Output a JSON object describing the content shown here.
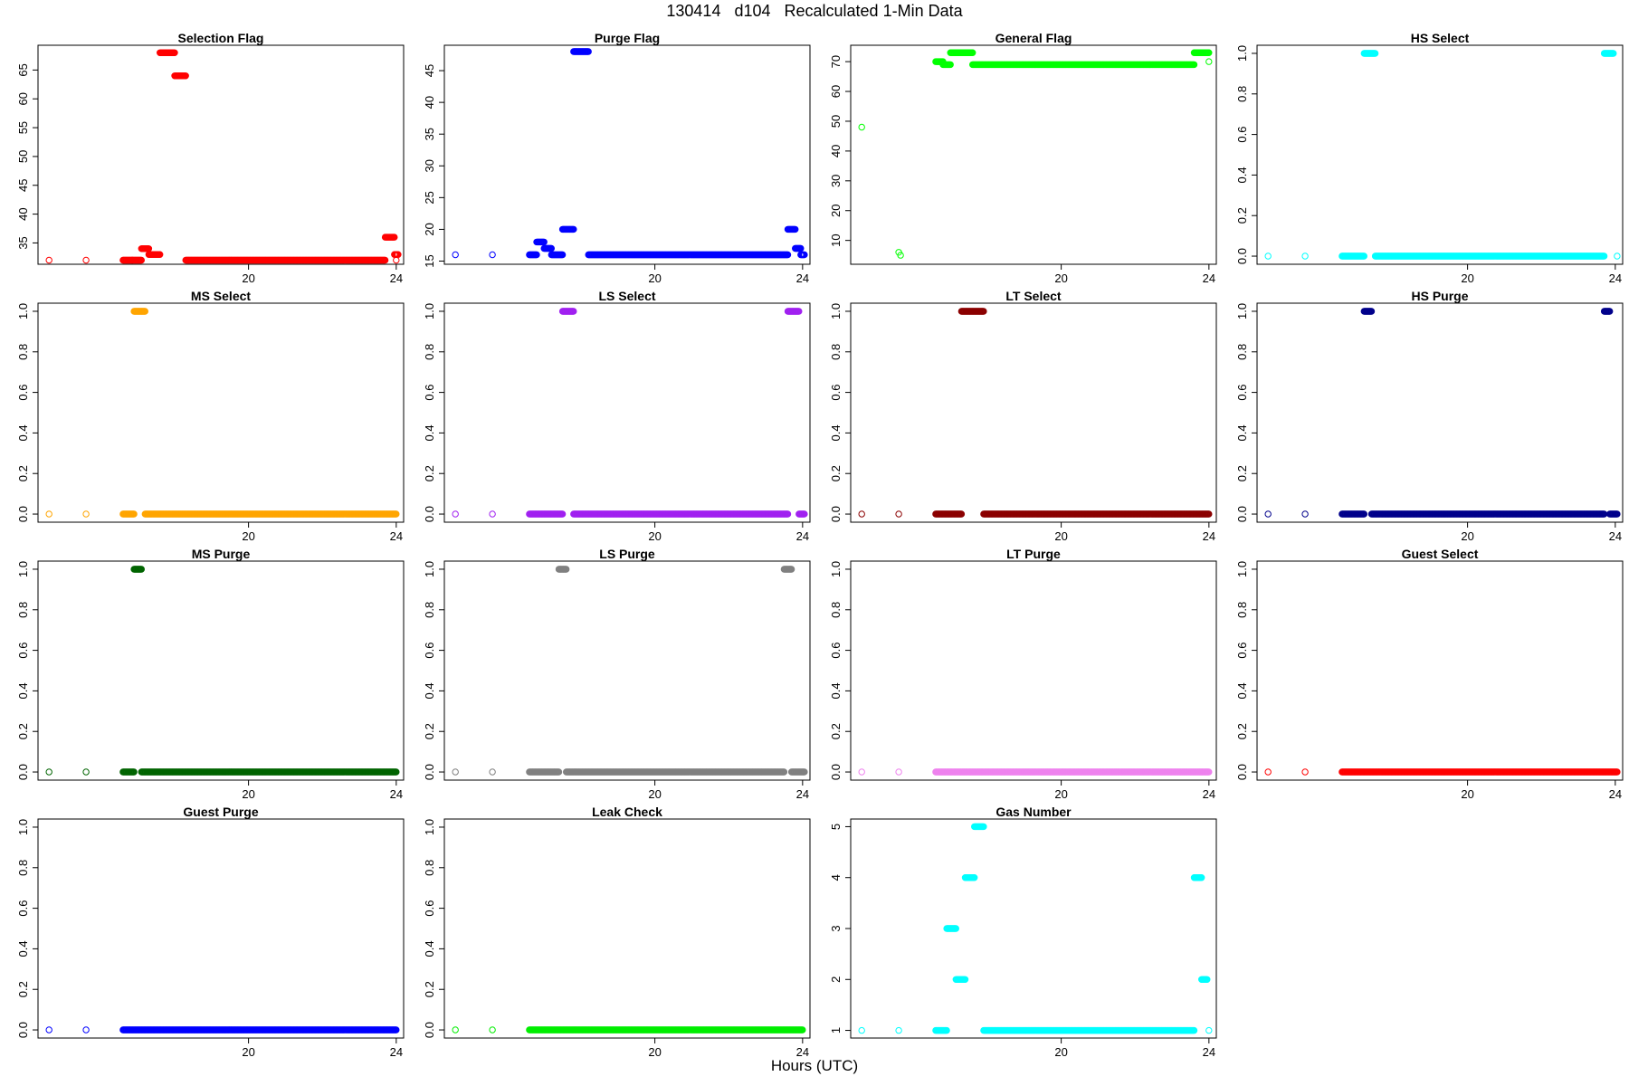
{
  "title": "130414   d104   Recalculated 1-Min Data",
  "xlabel": "Hours (UTC)",
  "chart_data": [
    {
      "type": "scatter",
      "title": "Selection Flag",
      "color": "#ff0000",
      "xlim": [
        14.3,
        24.2
      ],
      "ylim": [
        31.3,
        69.3
      ],
      "xticks": [
        20,
        24
      ],
      "yticks": [
        35,
        40,
        45,
        50,
        55,
        60,
        65
      ],
      "segments": [
        {
          "x": [
            [
              14.6
            ],
            [
              15.6
            ],
            [
              16.6,
              16.85
            ],
            [
              16.85,
              17.1
            ],
            [
              17.1,
              17.3
            ],
            [
              17.3,
              17.6
            ],
            [
              17.6,
              18.0
            ],
            [
              18.0,
              18.3
            ],
            [
              18.3,
              23.7
            ],
            [
              23.7,
              23.95
            ],
            [
              23.95,
              24.05
            ]
          ],
          "y": [
            32,
            32,
            32,
            32,
            34,
            33,
            68,
            64,
            32,
            36,
            33
          ]
        },
        {
          "x": [
            [
              24.0
            ]
          ],
          "y": [
            32
          ]
        }
      ]
    },
    {
      "type": "scatter",
      "title": "Purge Flag",
      "color": "#0000ff",
      "xlim": [
        14.3,
        24.2
      ],
      "ylim": [
        14.5,
        49.0
      ],
      "xticks": [
        20,
        24
      ],
      "yticks": [
        15,
        20,
        25,
        30,
        35,
        40,
        45
      ],
      "segments": [
        {
          "x": [
            [
              14.6
            ],
            [
              15.6
            ],
            [
              16.6,
              16.8
            ],
            [
              16.8,
              17.0
            ],
            [
              17.0,
              17.2
            ],
            [
              17.2,
              17.5
            ],
            [
              17.5,
              17.8
            ],
            [
              17.8,
              18.2
            ],
            [
              18.2,
              23.6
            ],
            [
              23.6,
              23.8
            ],
            [
              23.8,
              23.95
            ],
            [
              23.95,
              24.05
            ]
          ],
          "y": [
            16,
            16,
            16,
            18,
            17,
            16,
            20,
            48,
            16,
            20,
            17,
            16
          ]
        }
      ]
    },
    {
      "type": "scatter",
      "title": "General Flag",
      "color": "#00ff00",
      "xlim": [
        14.3,
        24.2
      ],
      "ylim": [
        2.0,
        75.5
      ],
      "xticks": [
        20,
        24
      ],
      "yticks": [
        10,
        20,
        30,
        40,
        50,
        60,
        70
      ],
      "segments": [
        {
          "x": [
            [
              14.6
            ],
            [
              15.6
            ],
            [
              15.65
            ],
            [
              16.6,
              16.8
            ],
            [
              16.8,
              17.0
            ],
            [
              17.0,
              17.6
            ],
            [
              17.6,
              23.6
            ],
            [
              23.6,
              24.0
            ],
            [
              24.0
            ]
          ],
          "y": [
            48,
            6,
            5,
            70,
            69,
            73,
            69,
            73,
            70
          ]
        }
      ]
    },
    {
      "type": "scatter",
      "title": "HS Select",
      "color": "#00ffff",
      "xlim": [
        14.3,
        24.2
      ],
      "ylim": [
        -0.04,
        1.04
      ],
      "xticks": [
        20,
        24
      ],
      "yticks": [
        0.0,
        0.2,
        0.4,
        0.6,
        0.8,
        1.0
      ],
      "segments": [
        {
          "x": [
            [
              14.6
            ],
            [
              15.6
            ],
            [
              16.6,
              17.2
            ],
            [
              17.2,
              17.5
            ],
            [
              17.5,
              23.7
            ],
            [
              23.7,
              23.95
            ],
            [
              24.05
            ]
          ],
          "y": [
            0,
            0,
            0,
            1,
            0,
            1,
            0
          ]
        }
      ]
    },
    {
      "type": "scatter",
      "title": "MS Select",
      "color": "#ffa500",
      "xlim": [
        14.3,
        24.2
      ],
      "ylim": [
        -0.04,
        1.04
      ],
      "xticks": [
        20,
        24
      ],
      "yticks": [
        0.0,
        0.2,
        0.4,
        0.6,
        0.8,
        1.0
      ],
      "segments": [
        {
          "x": [
            [
              14.6
            ],
            [
              15.6
            ],
            [
              16.6,
              16.9
            ],
            [
              16.9,
              17.2
            ],
            [
              17.2,
              24.0
            ]
          ],
          "y": [
            0,
            0,
            0,
            1,
            0
          ]
        }
      ]
    },
    {
      "type": "scatter",
      "title": "LS Select",
      "color": "#a020f0",
      "xlim": [
        14.3,
        24.2
      ],
      "ylim": [
        -0.04,
        1.04
      ],
      "xticks": [
        20,
        24
      ],
      "yticks": [
        0.0,
        0.2,
        0.4,
        0.6,
        0.8,
        1.0
      ],
      "segments": [
        {
          "x": [
            [
              14.6
            ],
            [
              15.6
            ],
            [
              16.6,
              17.5
            ],
            [
              17.5,
              17.8
            ],
            [
              17.8,
              23.6
            ],
            [
              23.6,
              23.9
            ],
            [
              23.9,
              24.05
            ]
          ],
          "y": [
            0,
            0,
            0,
            1,
            0,
            1,
            0
          ]
        }
      ]
    },
    {
      "type": "scatter",
      "title": "LT Select",
      "color": "#8b0000",
      "xlim": [
        14.3,
        24.2
      ],
      "ylim": [
        -0.04,
        1.04
      ],
      "xticks": [
        20,
        24
      ],
      "yticks": [
        0.0,
        0.2,
        0.4,
        0.6,
        0.8,
        1.0
      ],
      "segments": [
        {
          "x": [
            [
              14.6
            ],
            [
              15.6
            ],
            [
              16.6,
              17.3
            ],
            [
              17.3,
              17.9
            ],
            [
              17.9,
              24.0
            ]
          ],
          "y": [
            0,
            0,
            0,
            1,
            0
          ]
        }
      ]
    },
    {
      "type": "scatter",
      "title": "HS Purge",
      "color": "#00008b",
      "xlim": [
        14.3,
        24.2
      ],
      "ylim": [
        -0.04,
        1.04
      ],
      "xticks": [
        20,
        24
      ],
      "yticks": [
        0.0,
        0.2,
        0.4,
        0.6,
        0.8,
        1.0
      ],
      "segments": [
        {
          "x": [
            [
              14.6
            ],
            [
              15.6
            ],
            [
              16.6,
              17.2
            ],
            [
              17.2,
              17.4
            ],
            [
              17.4,
              23.7
            ],
            [
              23.7,
              23.85
            ],
            [
              23.85,
              24.05
            ]
          ],
          "y": [
            0,
            0,
            0,
            1,
            0,
            1,
            0
          ]
        }
      ]
    },
    {
      "type": "scatter",
      "title": "MS Purge",
      "color": "#006400",
      "xlim": [
        14.3,
        24.2
      ],
      "ylim": [
        -0.04,
        1.04
      ],
      "xticks": [
        20,
        24
      ],
      "yticks": [
        0.0,
        0.2,
        0.4,
        0.6,
        0.8,
        1.0
      ],
      "segments": [
        {
          "x": [
            [
              14.6
            ],
            [
              15.6
            ],
            [
              16.6,
              16.9
            ],
            [
              16.9,
              17.1
            ],
            [
              17.1,
              24.0
            ]
          ],
          "y": [
            0,
            0,
            0,
            1,
            0
          ]
        }
      ]
    },
    {
      "type": "scatter",
      "title": "LS Purge",
      "color": "#808080",
      "xlim": [
        14.3,
        24.2
      ],
      "ylim": [
        -0.04,
        1.04
      ],
      "xticks": [
        20,
        24
      ],
      "yticks": [
        0.0,
        0.2,
        0.4,
        0.6,
        0.8,
        1.0
      ],
      "segments": [
        {
          "x": [
            [
              14.6
            ],
            [
              15.6
            ],
            [
              16.6,
              17.4
            ],
            [
              17.4,
              17.6
            ],
            [
              17.6,
              23.5
            ],
            [
              23.5,
              23.7
            ],
            [
              23.7,
              24.05
            ]
          ],
          "y": [
            0,
            0,
            0,
            1,
            0,
            1,
            0
          ]
        }
      ]
    },
    {
      "type": "scatter",
      "title": "LT Purge",
      "color": "#ee82ee",
      "xlim": [
        14.3,
        24.2
      ],
      "ylim": [
        -0.04,
        1.04
      ],
      "xticks": [
        20,
        24
      ],
      "yticks": [
        0.0,
        0.2,
        0.4,
        0.6,
        0.8,
        1.0
      ],
      "segments": [
        {
          "x": [
            [
              14.6
            ],
            [
              15.6
            ],
            [
              16.6,
              24.0
            ]
          ],
          "y": [
            0,
            0,
            0
          ]
        }
      ]
    },
    {
      "type": "scatter",
      "title": "Guest Select",
      "color": "#ff0000",
      "xlim": [
        14.3,
        24.2
      ],
      "ylim": [
        -0.04,
        1.04
      ],
      "xticks": [
        20,
        24
      ],
      "yticks": [
        0.0,
        0.2,
        0.4,
        0.6,
        0.8,
        1.0
      ],
      "segments": [
        {
          "x": [
            [
              14.6
            ],
            [
              15.6
            ],
            [
              16.6,
              24.05
            ]
          ],
          "y": [
            0,
            0,
            0
          ]
        }
      ]
    },
    {
      "type": "scatter",
      "title": "Guest Purge",
      "color": "#0000ff",
      "xlim": [
        14.3,
        24.2
      ],
      "ylim": [
        -0.04,
        1.04
      ],
      "xticks": [
        20,
        24
      ],
      "yticks": [
        0.0,
        0.2,
        0.4,
        0.6,
        0.8,
        1.0
      ],
      "segments": [
        {
          "x": [
            [
              14.6
            ],
            [
              15.6
            ],
            [
              16.6,
              24.0
            ]
          ],
          "y": [
            0,
            0,
            0
          ]
        }
      ]
    },
    {
      "type": "scatter",
      "title": "Leak Check",
      "color": "#00ee00",
      "xlim": [
        14.3,
        24.2
      ],
      "ylim": [
        -0.04,
        1.04
      ],
      "xticks": [
        20,
        24
      ],
      "yticks": [
        0.0,
        0.2,
        0.4,
        0.6,
        0.8,
        1.0
      ],
      "segments": [
        {
          "x": [
            [
              14.6
            ],
            [
              15.6
            ],
            [
              16.6,
              24.0
            ]
          ],
          "y": [
            0,
            0,
            0
          ]
        }
      ]
    },
    {
      "type": "scatter",
      "title": "Gas Number",
      "color": "#00ffff",
      "xlim": [
        14.3,
        24.2
      ],
      "ylim": [
        0.85,
        5.15
      ],
      "xticks": [
        20,
        24
      ],
      "yticks": [
        1,
        2,
        3,
        4,
        5
      ],
      "segments": [
        {
          "x": [
            [
              14.6
            ],
            [
              15.6
            ],
            [
              16.6,
              16.9
            ],
            [
              16.9,
              17.15
            ],
            [
              17.15,
              17.4
            ],
            [
              17.4,
              17.65
            ],
            [
              17.65,
              17.9
            ],
            [
              17.9,
              23.6
            ],
            [
              23.6,
              23.8
            ],
            [
              23.8,
              23.95
            ],
            [
              24.0
            ]
          ],
          "y": [
            1,
            1,
            1,
            3,
            2,
            4,
            5,
            1,
            4,
            2,
            1
          ]
        }
      ]
    }
  ]
}
